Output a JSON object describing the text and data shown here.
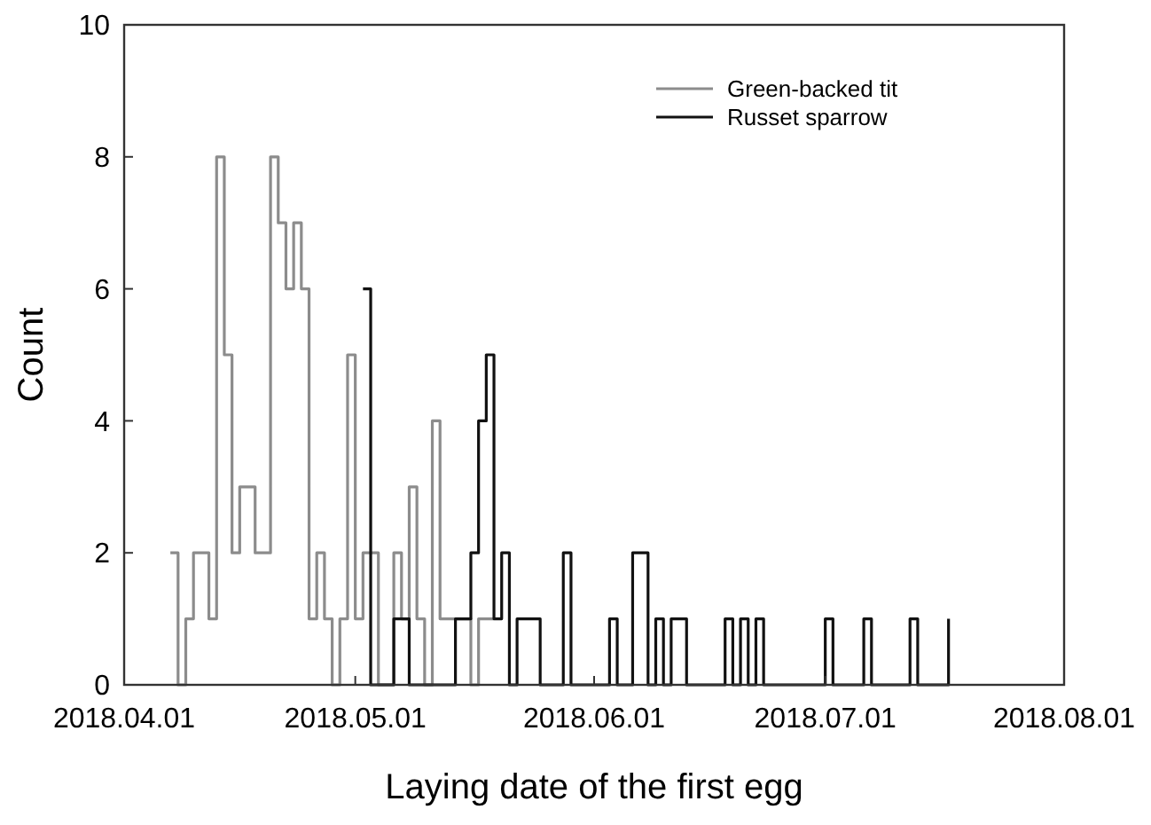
{
  "chart_data": {
    "type": "step",
    "xlabel": "Laying date of the first egg",
    "ylabel": "Count",
    "xlim": [
      "2018-04-01",
      "2018-08-01"
    ],
    "xticks": [
      {
        "value": "2018-04-01",
        "label": "2018.04.01"
      },
      {
        "value": "2018-05-01",
        "label": "2018.05.01"
      },
      {
        "value": "2018-06-01",
        "label": "2018.06.01"
      },
      {
        "value": "2018-07-01",
        "label": "2018.07.01"
      },
      {
        "value": "2018-08-01",
        "label": "2018.08.01"
      }
    ],
    "ylim": [
      0,
      10
    ],
    "yticks": [
      0,
      2,
      4,
      6,
      8,
      10
    ],
    "grid": false,
    "legend": "top right",
    "line_style": "solid",
    "series": [
      {
        "name": "Green-backed tit",
        "color": "#8c8c8c",
        "x": [
          "2018-04-07",
          "2018-04-08",
          "2018-04-09",
          "2018-04-10",
          "2018-04-11",
          "2018-04-12",
          "2018-04-13",
          "2018-04-14",
          "2018-04-15",
          "2018-04-16",
          "2018-04-17",
          "2018-04-18",
          "2018-04-19",
          "2018-04-20",
          "2018-04-21",
          "2018-04-22",
          "2018-04-23",
          "2018-04-24",
          "2018-04-25",
          "2018-04-26",
          "2018-04-27",
          "2018-04-28",
          "2018-04-29",
          "2018-04-30",
          "2018-05-01",
          "2018-05-02",
          "2018-05-03",
          "2018-05-04",
          "2018-05-05",
          "2018-05-06",
          "2018-05-07",
          "2018-05-08",
          "2018-05-09",
          "2018-05-10",
          "2018-05-11",
          "2018-05-12",
          "2018-05-13",
          "2018-05-14",
          "2018-05-15",
          "2018-05-16",
          "2018-05-17",
          "2018-05-18",
          "2018-05-19"
        ],
        "values": [
          2,
          0,
          1,
          2,
          2,
          1,
          8,
          5,
          2,
          3,
          3,
          2,
          2,
          8,
          7,
          6,
          7,
          6,
          1,
          2,
          1,
          0,
          1,
          5,
          1,
          2,
          2,
          0,
          0,
          2,
          1,
          3,
          1,
          0,
          4,
          1,
          1,
          1,
          1,
          0,
          1,
          1,
          1
        ]
      },
      {
        "name": "Russet sparrow",
        "color": "#111111",
        "x": [
          "2018-05-02",
          "2018-05-03",
          "2018-05-04",
          "2018-05-05",
          "2018-05-06",
          "2018-05-07",
          "2018-05-08",
          "2018-05-09",
          "2018-05-10",
          "2018-05-11",
          "2018-05-12",
          "2018-05-13",
          "2018-05-14",
          "2018-05-15",
          "2018-05-16",
          "2018-05-17",
          "2018-05-18",
          "2018-05-19",
          "2018-05-20",
          "2018-05-21",
          "2018-05-22",
          "2018-05-23",
          "2018-05-24",
          "2018-05-25",
          "2018-05-26",
          "2018-05-27",
          "2018-05-28",
          "2018-05-29",
          "2018-05-30",
          "2018-05-31",
          "2018-06-01",
          "2018-06-02",
          "2018-06-03",
          "2018-06-04",
          "2018-06-05",
          "2018-06-06",
          "2018-06-07",
          "2018-06-08",
          "2018-06-09",
          "2018-06-10",
          "2018-06-11",
          "2018-06-12",
          "2018-06-13",
          "2018-06-14",
          "2018-06-15",
          "2018-06-16",
          "2018-06-17",
          "2018-06-18",
          "2018-06-19",
          "2018-06-20",
          "2018-06-21",
          "2018-06-22",
          "2018-06-23",
          "2018-06-24",
          "2018-06-25",
          "2018-06-26",
          "2018-06-27",
          "2018-06-28",
          "2018-06-29",
          "2018-06-30",
          "2018-07-01",
          "2018-07-02",
          "2018-07-03",
          "2018-07-04",
          "2018-07-05",
          "2018-07-06",
          "2018-07-07",
          "2018-07-08",
          "2018-07-09",
          "2018-07-10",
          "2018-07-11",
          "2018-07-12",
          "2018-07-13",
          "2018-07-14",
          "2018-07-15",
          "2018-07-16",
          "2018-07-17"
        ],
        "values": [
          6,
          0,
          0,
          0,
          1,
          1,
          0,
          0,
          0,
          0,
          0,
          0,
          1,
          1,
          2,
          4,
          5,
          1,
          2,
          0,
          1,
          1,
          1,
          0,
          0,
          0,
          2,
          0,
          0,
          0,
          0,
          0,
          1,
          0,
          0,
          2,
          2,
          0,
          1,
          0,
          1,
          1,
          0,
          0,
          0,
          0,
          0,
          1,
          0,
          1,
          0,
          1,
          0,
          0,
          0,
          0,
          0,
          0,
          0,
          0,
          1,
          0,
          0,
          0,
          0,
          1,
          0,
          0,
          0,
          0,
          0,
          1,
          0,
          0,
          0,
          0,
          1
        ]
      }
    ]
  }
}
